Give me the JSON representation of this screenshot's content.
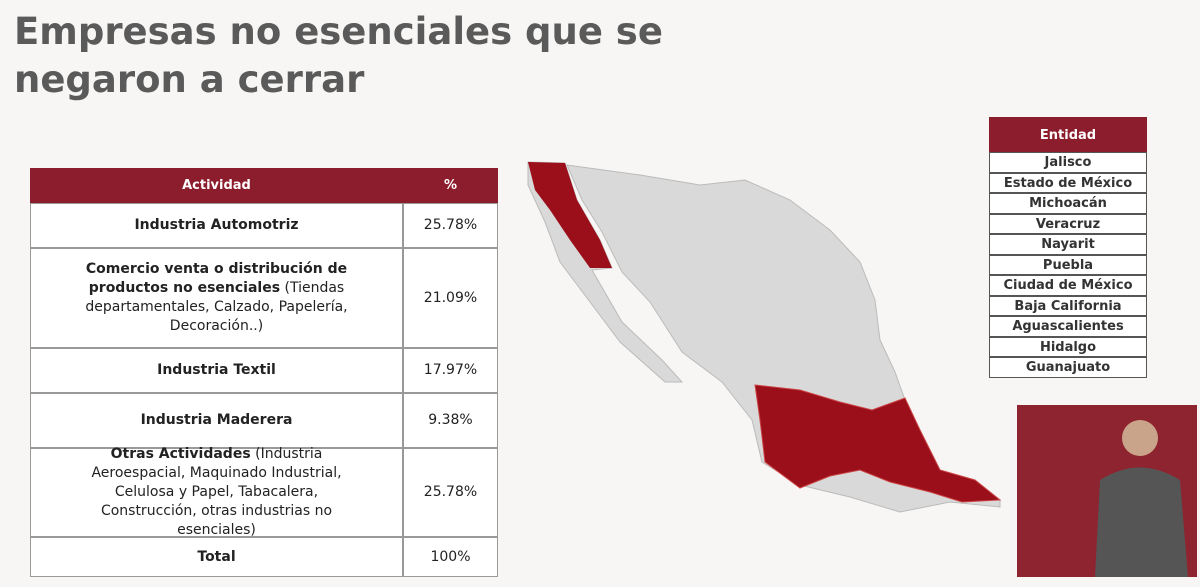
{
  "header": {
    "title": "Empresas no esenciales que se negaron a cerrar"
  },
  "activity_table": {
    "columns": [
      "Actividad",
      "%"
    ],
    "rows": [
      {
        "bold": "Industria Automotriz",
        "percent": "25.78%"
      },
      {
        "bold": "Comercio venta o distribución de productos no esenciales",
        "detail": "(Tiendas departamentales, Calzado, Papelería, Decoración..)",
        "percent": "21.09%"
      },
      {
        "bold": "Industria Textil",
        "percent": "17.97%"
      },
      {
        "bold": "Industria Maderera",
        "percent": "9.38%"
      },
      {
        "bold": "Otras Actividades",
        "detail": "(Industria Aeroespacial, Maquinado Industrial, Celulosa y Papel, Tabacalera, Construcción, otras industrias no esenciales)",
        "percent": "25.78%"
      },
      {
        "bold": "Total",
        "percent": "100%"
      }
    ]
  },
  "entity_table": {
    "header": "Entidad",
    "rows": [
      "Jalisco",
      "Estado de México",
      "Michoacán",
      "Veracruz",
      "Nayarit",
      "Puebla",
      "Ciudad de México",
      "Baja California",
      "Aguascalientes",
      "Hidalgo",
      "Guanajuato"
    ]
  }
}
